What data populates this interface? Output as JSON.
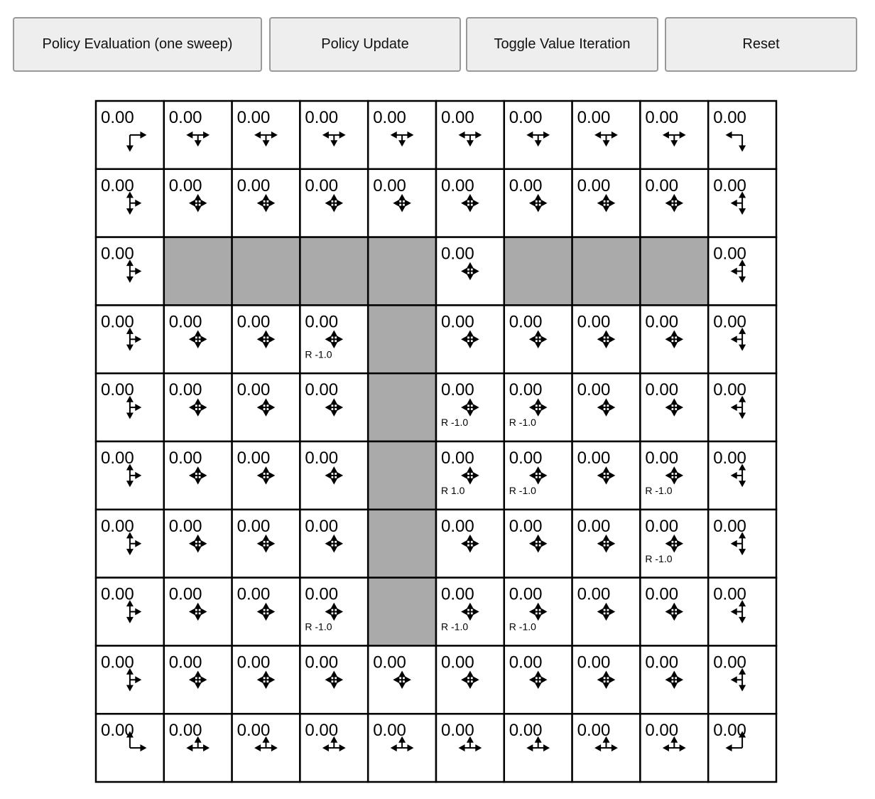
{
  "toolbar": {
    "policy_evaluation": "Policy Evaluation (one sweep)",
    "policy_update": "Policy Update",
    "toggle_value_iteration": "Toggle Value Iteration",
    "reset": "Reset"
  },
  "grid": {
    "wall_color": "#aaaaaa",
    "values": [
      [
        "0.00",
        "0.00",
        "0.00",
        "0.00",
        "0.00",
        "0.00",
        "0.00",
        "0.00",
        "0.00",
        "0.00"
      ],
      [
        "0.00",
        "0.00",
        "0.00",
        "0.00",
        "0.00",
        "0.00",
        "0.00",
        "0.00",
        "0.00",
        "0.00"
      ],
      [
        "0.00",
        null,
        null,
        null,
        null,
        "0.00",
        null,
        null,
        null,
        "0.00"
      ],
      [
        "0.00",
        "0.00",
        "0.00",
        "0.00",
        null,
        "0.00",
        "0.00",
        "0.00",
        "0.00",
        "0.00"
      ],
      [
        "0.00",
        "0.00",
        "0.00",
        "0.00",
        null,
        "0.00",
        "0.00",
        "0.00",
        "0.00",
        "0.00"
      ],
      [
        "0.00",
        "0.00",
        "0.00",
        "0.00",
        null,
        "0.00",
        "0.00",
        "0.00",
        "0.00",
        "0.00"
      ],
      [
        "0.00",
        "0.00",
        "0.00",
        "0.00",
        null,
        "0.00",
        "0.00",
        "0.00",
        "0.00",
        "0.00"
      ],
      [
        "0.00",
        "0.00",
        "0.00",
        "0.00",
        null,
        "0.00",
        "0.00",
        "0.00",
        "0.00",
        "0.00"
      ],
      [
        "0.00",
        "0.00",
        "0.00",
        "0.00",
        "0.00",
        "0.00",
        "0.00",
        "0.00",
        "0.00",
        "0.00"
      ],
      [
        "0.00",
        "0.00",
        "0.00",
        "0.00",
        "0.00",
        "0.00",
        "0.00",
        "0.00",
        "0.00",
        "0.00"
      ]
    ],
    "rewards": [
      [
        "",
        "",
        "",
        "",
        "",
        "",
        "",
        "",
        "",
        ""
      ],
      [
        "",
        "",
        "",
        "",
        "",
        "",
        "",
        "",
        "",
        ""
      ],
      [
        "",
        "",
        "",
        "",
        "",
        "",
        "",
        "",
        "",
        ""
      ],
      [
        "",
        "",
        "",
        "R -1.0",
        "",
        "",
        "",
        "",
        "",
        ""
      ],
      [
        "",
        "",
        "",
        "",
        "",
        "R -1.0",
        "R -1.0",
        "",
        "",
        ""
      ],
      [
        "",
        "",
        "",
        "",
        "",
        "R 1.0",
        "R -1.0",
        "",
        "R -1.0",
        ""
      ],
      [
        "",
        "",
        "",
        "",
        "",
        "",
        "",
        "",
        "R -1.0",
        ""
      ],
      [
        "",
        "",
        "",
        "R -1.0",
        "",
        "R -1.0",
        "R -1.0",
        "",
        "",
        ""
      ],
      [
        "",
        "",
        "",
        "",
        "",
        "",
        "",
        "",
        "",
        ""
      ],
      [
        "",
        "",
        "",
        "",
        "",
        "",
        "",
        "",
        "",
        ""
      ]
    ]
  }
}
